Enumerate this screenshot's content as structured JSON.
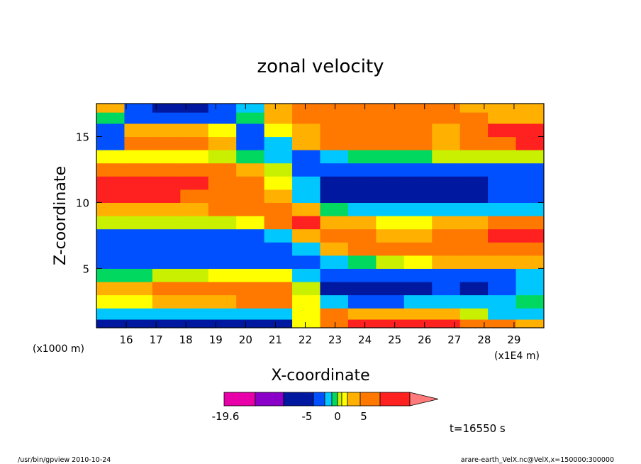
{
  "chart_data": {
    "type": "heatmap",
    "subtype": "filled-contour",
    "title": "zonal velocity",
    "xlabel": "X-coordinate",
    "ylabel": "Z-coordinate",
    "x_unit_label": "(x1E4 m)",
    "y_unit_label": "(x1000 m)",
    "xlim": [
      15,
      30
    ],
    "ylim": [
      0.5,
      17.5
    ],
    "x_ticks": [
      16,
      17,
      18,
      19,
      20,
      21,
      22,
      23,
      24,
      25,
      26,
      27,
      28,
      29
    ],
    "y_ticks": [
      5,
      10,
      15
    ],
    "time_label": "t=16550 s",
    "colorbar": {
      "colors": [
        "#e800a8",
        "#8a00c8",
        "#0018a0",
        "#0050ff",
        "#00c8ff",
        "#00d860",
        "#c8f000",
        "#ffff00",
        "#ffb000",
        "#ff7800",
        "#ff2020",
        "#ff7a7a"
      ],
      "tick_labels": [
        "-19.6",
        "-5",
        "0",
        "5"
      ],
      "extend_max": true
    },
    "bands": [
      {
        "y": 0.8,
        "values": [
          -6,
          -6,
          -6,
          -6,
          -6,
          -6,
          -6,
          1,
          6,
          7,
          7,
          8,
          7,
          6,
          4,
          3
        ]
      },
      {
        "y": 1.5,
        "values": [
          -3,
          -3,
          -3,
          -3,
          -3,
          -3,
          -2,
          1,
          4,
          3,
          3,
          3,
          2,
          0,
          -3,
          -3
        ]
      },
      {
        "y": 2.5,
        "values": [
          1,
          1,
          2,
          2,
          3,
          4,
          4,
          1,
          -3,
          -4,
          -4,
          -3,
          -3,
          -3,
          -3,
          -1
        ]
      },
      {
        "y": 3.5,
        "values": [
          2,
          3,
          4,
          4,
          5,
          6,
          5,
          0,
          -6,
          -7,
          -7,
          -6,
          -5,
          -6,
          -5,
          -3
        ]
      },
      {
        "y": 4.5,
        "values": [
          -1,
          -1,
          0,
          0,
          1,
          1,
          1,
          -2,
          -5,
          -5,
          -5,
          -5,
          -4,
          -4,
          -4,
          -3
        ]
      },
      {
        "y": 5.5,
        "values": [
          -5,
          -5,
          -5,
          -5,
          -5,
          -5,
          -4,
          -4,
          -3,
          -1,
          0,
          1,
          2,
          2,
          3,
          3
        ]
      },
      {
        "y": 6.5,
        "values": [
          -5,
          -5,
          -5,
          -5,
          -5,
          -5,
          -4,
          -2,
          2,
          4,
          5,
          5,
          5,
          5,
          5,
          5
        ]
      },
      {
        "y": 7.5,
        "values": [
          -5,
          -5,
          -5,
          -5,
          -5,
          -5,
          -3,
          3,
          6,
          5,
          3,
          2,
          4,
          6,
          7,
          7
        ]
      },
      {
        "y": 8.5,
        "values": [
          0,
          0,
          0,
          0,
          0,
          1,
          5,
          8,
          3,
          2,
          1,
          1,
          2,
          3,
          5,
          6
        ]
      },
      {
        "y": 9.5,
        "values": [
          3,
          3,
          3,
          3,
          4,
          5,
          4,
          2,
          -1,
          -3,
          -3,
          -3,
          -3,
          -2,
          -2,
          -2
        ]
      },
      {
        "y": 10.5,
        "values": [
          7,
          8,
          7,
          6,
          5,
          4,
          2,
          -3,
          -6,
          -6,
          -7,
          -7,
          -6,
          -6,
          -5,
          -5
        ]
      },
      {
        "y": 11.5,
        "values": [
          8,
          9,
          8,
          7,
          6,
          4,
          1,
          -3,
          -6,
          -7,
          -8,
          -8,
          -7,
          -6,
          -5,
          -5
        ]
      },
      {
        "y": 12.5,
        "values": [
          6,
          6,
          6,
          5,
          4,
          2,
          0,
          -4,
          -5,
          -5,
          -5,
          -5,
          -5,
          -4,
          -4,
          -4
        ]
      },
      {
        "y": 13.5,
        "values": [
          1,
          1,
          1,
          1,
          0,
          -1,
          -2,
          -4,
          -2,
          -1,
          -1,
          -1,
          0,
          0,
          0,
          0
        ]
      },
      {
        "y": 14.5,
        "values": [
          -4,
          4,
          5,
          4,
          2,
          -5,
          -2,
          2,
          4,
          4,
          5,
          4,
          2,
          6,
          6,
          7
        ]
      },
      {
        "y": 15.5,
        "values": [
          -4,
          2,
          3,
          2,
          1,
          -5,
          1,
          3,
          5,
          5,
          6,
          5,
          3,
          6,
          7,
          7
        ]
      },
      {
        "y": 16.5,
        "values": [
          -1,
          -4,
          -5,
          -5,
          -4,
          -1,
          2,
          4,
          6,
          6,
          6,
          6,
          4,
          4,
          3,
          3
        ]
      },
      {
        "y": 17.2,
        "values": [
          2,
          -5,
          -6,
          -6,
          -5,
          -2,
          3,
          5,
          6,
          6,
          6,
          5,
          4,
          3,
          2,
          2
        ]
      }
    ]
  },
  "footer": {
    "program": "/usr/bin/gpview   2010-10-24",
    "source": "arare-earth_VelX.nc@VelX,x=150000:300000"
  }
}
